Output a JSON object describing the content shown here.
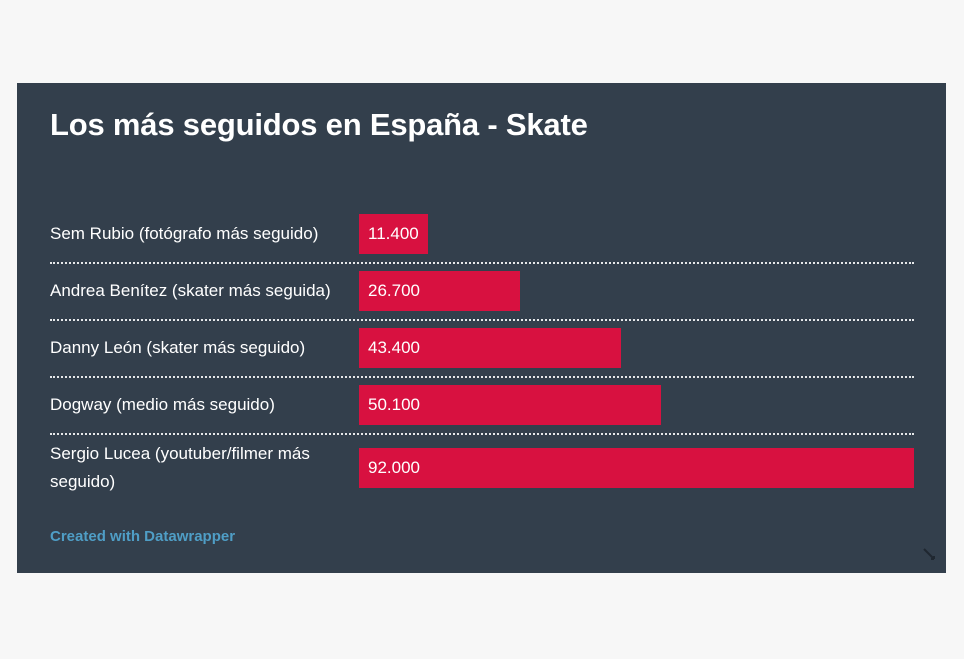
{
  "chart_data": {
    "type": "bar",
    "orientation": "horizontal",
    "title": "Los más seguidos en España - Skate",
    "categories": [
      "Sem Rubio (fotógrafo más seguido)",
      "Andrea Benítez (skater más seguida)",
      "Danny León (skater más seguido)",
      "Dogway (medio más seguido)",
      "Sergio Lucea (youtuber/filmer más seguido)"
    ],
    "values": [
      11400,
      26700,
      43400,
      50100,
      92000
    ],
    "value_labels": [
      "11.400",
      "26.700",
      "43.400",
      "50.100",
      "92.000"
    ],
    "xlim": [
      0,
      92000
    ],
    "bar_color": "#d81140",
    "background_color": "#333f4c"
  },
  "footer": {
    "credit": "Created with Datawrapper",
    "credit_color": "#4f9ec6"
  },
  "icons": {
    "corner": "resize-handle-icon"
  }
}
